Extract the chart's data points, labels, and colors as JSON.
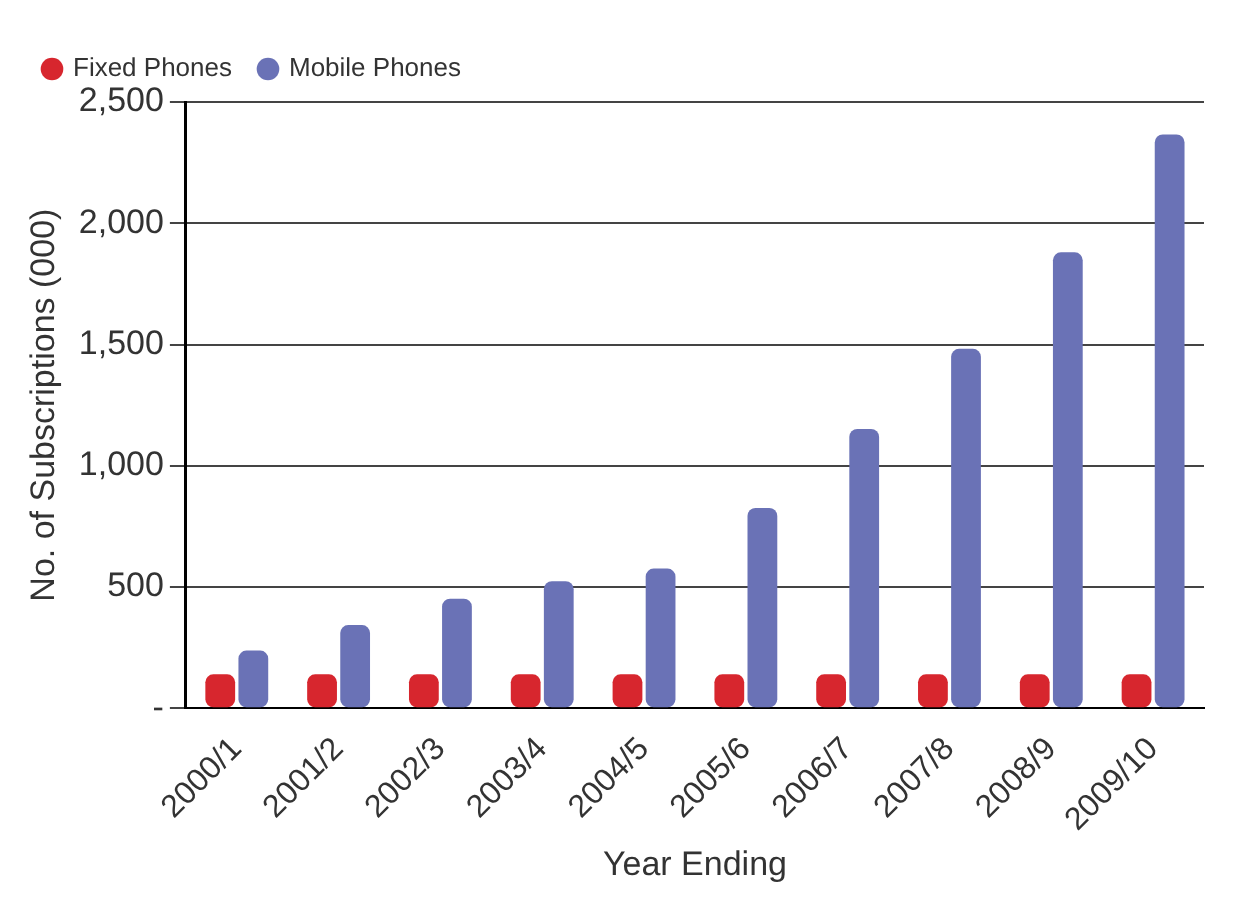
{
  "chart_data": {
    "type": "bar",
    "xlabel": "Year Ending",
    "ylabel": "No. of Subscriptions (000)",
    "categories": [
      "2000/1",
      "2001/2",
      "2002/3",
      "2003/4",
      "2004/5",
      "2005/6",
      "2006/7",
      "2007/8",
      "2008/9",
      "2009/10"
    ],
    "series": [
      {
        "name": "Fixed Phones",
        "color": "#d7262e",
        "values": [
          140,
          140,
          140,
          140,
          140,
          140,
          140,
          140,
          140,
          140
        ]
      },
      {
        "name": "Mobile Phones",
        "color": "#6a72b6",
        "values": [
          238,
          343,
          452,
          524,
          576,
          826,
          1152,
          1482,
          1880,
          2366
        ]
      }
    ],
    "ylim": [
      0,
      2500
    ],
    "yticks": [
      {
        "value": 0,
        "label": "-"
      },
      500,
      {
        "value": 1000,
        "label": "1,000"
      },
      {
        "value": 1500,
        "label": "1,500"
      },
      {
        "value": 2000,
        "label": "2,000"
      },
      {
        "value": 2500,
        "label": "2,500"
      }
    ],
    "grid": "y",
    "legend": "top left"
  }
}
